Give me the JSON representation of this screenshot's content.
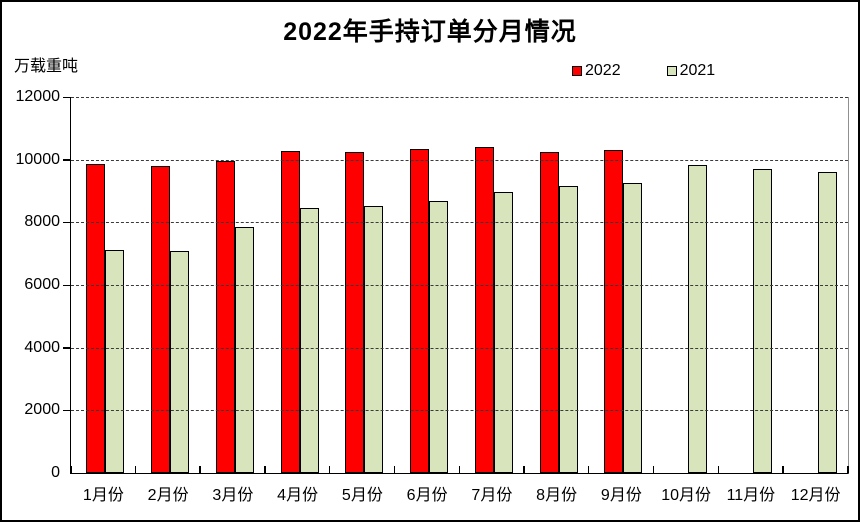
{
  "chart_data": {
    "type": "bar",
    "title": "2022年手持订单分月情况",
    "unit_label": "万载重吨",
    "categories": [
      "1月份",
      "2月份",
      "3月份",
      "4月份",
      "5月份",
      "6月份",
      "7月份",
      "8月份",
      "9月份",
      "10月份",
      "11月份",
      "12月份"
    ],
    "series": [
      {
        "name": "2022",
        "color": "#FF0000",
        "values": [
          9850,
          9800,
          9950,
          10270,
          10240,
          10330,
          10400,
          10250,
          10300,
          null,
          null,
          null
        ]
      },
      {
        "name": "2021",
        "color": "#D8E4BC",
        "values": [
          7130,
          7070,
          7860,
          8460,
          8530,
          8690,
          8960,
          9150,
          9260,
          9820,
          9690,
          9600
        ]
      }
    ],
    "ylim": [
      0,
      12000
    ],
    "yticks": [
      0,
      2000,
      4000,
      6000,
      8000,
      10000,
      12000
    ],
    "xlabel": "",
    "ylabel": "万载重吨",
    "grid": "horizontal-dashed",
    "legend_position": "top-right",
    "axis_color": "#000000",
    "gridline_color": "#3a3a3a"
  }
}
